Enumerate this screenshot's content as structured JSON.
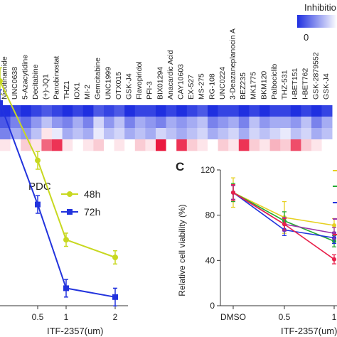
{
  "chart_data": [
    {
      "type": "heatmap",
      "legend_title": "Inhibitio",
      "legend_min_label": "0",
      "legend_colors": [
        "#1f2fe0",
        "#ffffff",
        "#e8002a"
      ],
      "compounds": [
        "Nicotinamide",
        "UNC0638",
        "5-Azacytidine",
        "Decitabine",
        "(+)-JQ1",
        "Panobinostat",
        "THZ1",
        "IOX1",
        "MI-2",
        "Gemcitabine",
        "UNC1999",
        "OTX015",
        "GSK-J4",
        "Flavopiridol",
        "PFI-3",
        "BIX01294",
        "Anacardic Acid",
        "CAY10603",
        "EX-527",
        "MS-275",
        "RG-108",
        "UNC0224",
        "3-Deazaneplanocin A",
        "BEZ235",
        "MK1775",
        "BKM120",
        "Palbociclib",
        "THZ-531",
        "I-BET151",
        "I-BET762",
        "GSK-2879552",
        "GSK-J4"
      ],
      "rows": [
        [
          0.0,
          0.05,
          0.0,
          0.05,
          0.1,
          0.05,
          0.0,
          0.05,
          0.0,
          0.1,
          0.05,
          0.1,
          0.0,
          0.05,
          0.05,
          0.0,
          0.05,
          0.0,
          0.05,
          0.1,
          0.0,
          0.05,
          0.05,
          0.0,
          0.05,
          0.0,
          0.05,
          0.05,
          0.0,
          0.05,
          0.0,
          0.05
        ],
        [
          0.1,
          0.2,
          0.15,
          0.25,
          0.35,
          0.25,
          0.2,
          0.3,
          0.2,
          0.4,
          0.25,
          0.35,
          0.2,
          0.3,
          0.25,
          0.2,
          0.3,
          0.25,
          0.3,
          0.35,
          0.2,
          0.25,
          0.3,
          0.2,
          0.35,
          0.25,
          0.3,
          0.3,
          0.25,
          0.35,
          0.2,
          0.3
        ],
        [
          0.2,
          0.3,
          0.25,
          0.35,
          0.55,
          0.45,
          0.3,
          0.35,
          0.3,
          0.45,
          0.35,
          0.4,
          0.3,
          0.35,
          0.3,
          0.4,
          0.35,
          0.3,
          0.35,
          0.4,
          0.3,
          0.35,
          0.4,
          0.3,
          0.4,
          0.35,
          0.4,
          0.45,
          0.35,
          0.4,
          0.3,
          0.35
        ],
        [
          0.55,
          0.5,
          0.6,
          0.55,
          0.8,
          0.9,
          0.55,
          0.5,
          0.55,
          0.6,
          0.5,
          0.55,
          0.5,
          0.6,
          0.55,
          0.95,
          0.5,
          0.9,
          0.6,
          0.55,
          0.5,
          0.6,
          0.55,
          0.9,
          0.6,
          0.55,
          0.65,
          0.6,
          0.85,
          0.6,
          0.55,
          0.5
        ]
      ]
    },
    {
      "type": "line",
      "title": "PDC",
      "xlabel": "ITF-2357(um)",
      "categories": [
        "",
        "0.5",
        "1",
        "2"
      ],
      "series": [
        {
          "name": "48h",
          "color": "#c8d820",
          "values": [
            80,
            62,
            44,
            40
          ],
          "errors": [
            3,
            2,
            1.5,
            1.5
          ]
        },
        {
          "name": "72h",
          "color": "#2233dd",
          "values": [
            75,
            52,
            33,
            31
          ],
          "errors": [
            3,
            2,
            2,
            2
          ]
        }
      ]
    },
    {
      "type": "line",
      "panel_label": "C",
      "ylabel": "Relative cell viability (%)",
      "xlabel": "ITF-2357(um)",
      "categories": [
        "DMSO",
        "0.5",
        "1"
      ],
      "yticks": [
        "0",
        "40",
        "80",
        "120"
      ],
      "ylim": [
        0,
        120
      ],
      "series": [
        {
          "color": "#e6d020",
          "values": [
            100,
            78,
            71
          ],
          "errors": [
            13,
            14,
            6
          ]
        },
        {
          "color": "#22aa33",
          "values": [
            100,
            75,
            57
          ],
          "errors": [
            8,
            8,
            5
          ]
        },
        {
          "color": "#2233dd",
          "values": [
            100,
            67,
            60
          ],
          "errors": [
            6,
            5,
            5
          ]
        },
        {
          "color": "#9933aa",
          "values": [
            100,
            72,
            64
          ],
          "errors": [
            6,
            6,
            5
          ]
        },
        {
          "color": "#e8204a",
          "values": [
            100,
            72,
            41
          ],
          "errors": [
            7,
            5,
            4
          ]
        }
      ]
    }
  ]
}
